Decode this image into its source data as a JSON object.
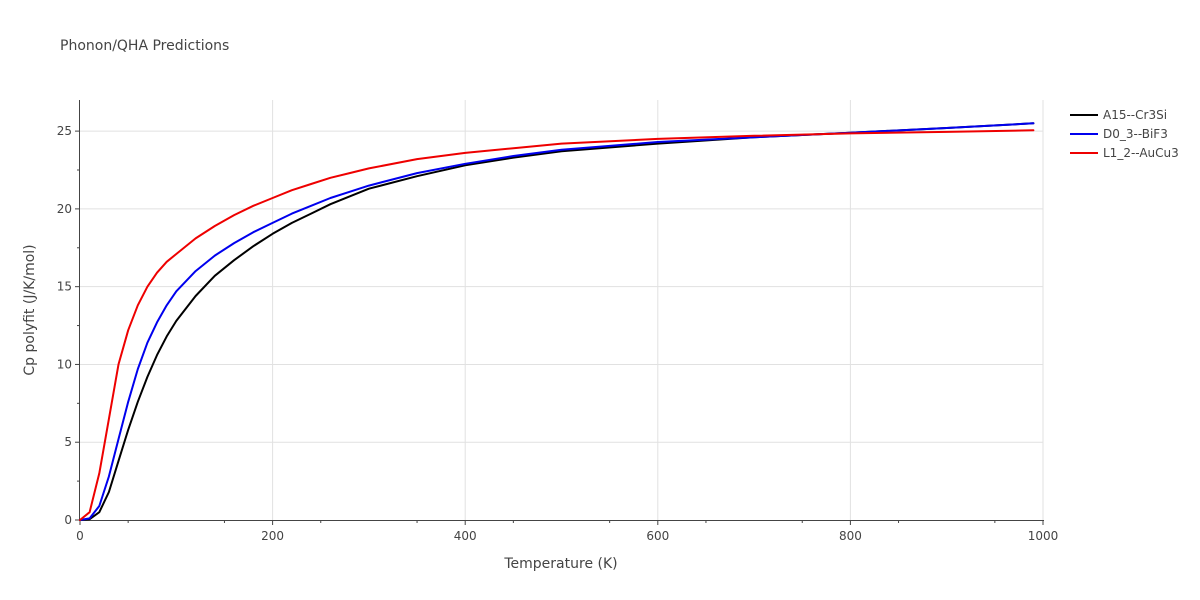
{
  "chart_data": {
    "type": "line",
    "title": "Phonon/QHA Predictions",
    "xlabel": "Temperature (K)",
    "ylabel": "Cp polyfit (J/K/mol)",
    "xlim": [
      0,
      1000
    ],
    "ylim": [
      0,
      27
    ],
    "xticks": [
      0,
      200,
      400,
      600,
      800,
      1000
    ],
    "yticks": [
      0,
      5,
      10,
      15,
      20,
      25
    ],
    "grid": true,
    "legend_position": "top-right-outside",
    "series": [
      {
        "name": "A15--Cr3Si",
        "color": "#000000",
        "x": [
          0,
          10,
          20,
          30,
          40,
          50,
          60,
          70,
          80,
          90,
          100,
          120,
          140,
          160,
          180,
          200,
          220,
          240,
          260,
          280,
          300,
          350,
          400,
          450,
          500,
          600,
          700,
          800,
          900,
          990
        ],
        "y": [
          0,
          0.05,
          0.5,
          1.8,
          3.8,
          5.8,
          7.6,
          9.2,
          10.6,
          11.8,
          12.8,
          14.4,
          15.7,
          16.7,
          17.6,
          18.4,
          19.1,
          19.7,
          20.3,
          20.8,
          21.3,
          22.1,
          22.8,
          23.3,
          23.7,
          24.2,
          24.6,
          24.9,
          25.2,
          25.5
        ]
      },
      {
        "name": "D0_3--BiF3",
        "color": "#0000ee",
        "x": [
          0,
          10,
          20,
          30,
          40,
          50,
          60,
          70,
          80,
          90,
          100,
          120,
          140,
          160,
          180,
          200,
          220,
          240,
          260,
          280,
          300,
          350,
          400,
          450,
          500,
          600,
          700,
          800,
          900,
          990
        ],
        "y": [
          0,
          0.1,
          0.9,
          2.8,
          5.2,
          7.6,
          9.7,
          11.4,
          12.7,
          13.8,
          14.7,
          16.0,
          17.0,
          17.8,
          18.5,
          19.1,
          19.7,
          20.2,
          20.7,
          21.1,
          21.5,
          22.3,
          22.9,
          23.4,
          23.8,
          24.3,
          24.6,
          24.9,
          25.2,
          25.5
        ]
      },
      {
        "name": "L1_2--AuCu3",
        "color": "#ee0000",
        "x": [
          0,
          10,
          20,
          30,
          40,
          50,
          60,
          70,
          80,
          90,
          100,
          120,
          140,
          160,
          180,
          200,
          220,
          240,
          260,
          280,
          300,
          350,
          400,
          450,
          500,
          600,
          700,
          800,
          900,
          990
        ],
        "y": [
          0,
          0.5,
          3.0,
          6.5,
          10.0,
          12.2,
          13.8,
          15.0,
          15.9,
          16.6,
          17.1,
          18.1,
          18.9,
          19.6,
          20.2,
          20.7,
          21.2,
          21.6,
          22.0,
          22.3,
          22.6,
          23.2,
          23.6,
          23.9,
          24.2,
          24.5,
          24.7,
          24.85,
          24.95,
          25.05
        ]
      }
    ]
  }
}
